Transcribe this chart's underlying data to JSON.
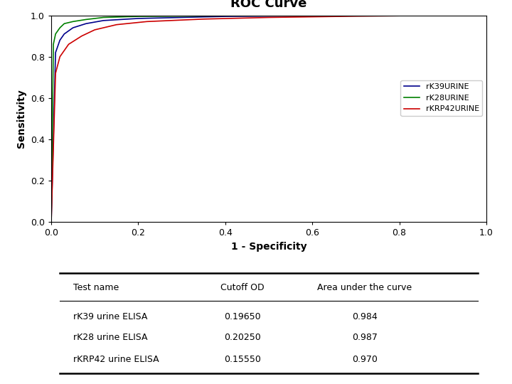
{
  "title": "ROC Curve",
  "xlabel": "1 - Specificity",
  "ylabel": "Sensitivity",
  "xlim": [
    0.0,
    1.0
  ],
  "ylim": [
    0.0,
    1.0
  ],
  "xticks": [
    0.0,
    0.2,
    0.4,
    0.6,
    0.8,
    1.0
  ],
  "yticks": [
    0.0,
    0.2,
    0.4,
    0.6,
    0.8,
    1.0
  ],
  "curves": [
    {
      "name": "rK39URINE",
      "color": "#00008B",
      "fp_points": [
        0.0,
        0.01,
        0.02,
        0.03,
        0.05,
        0.08,
        0.12,
        0.2,
        0.4,
        0.6,
        0.8,
        1.0
      ],
      "tp_points": [
        0.0,
        0.82,
        0.88,
        0.91,
        0.94,
        0.96,
        0.975,
        0.985,
        0.995,
        0.998,
        0.999,
        1.0
      ]
    },
    {
      "name": "rK28URINE",
      "color": "#008000",
      "fp_points": [
        0.0,
        0.005,
        0.01,
        0.02,
        0.03,
        0.05,
        0.08,
        0.12,
        0.2,
        0.4,
        0.6,
        0.8,
        1.0
      ],
      "tp_points": [
        0.0,
        0.86,
        0.91,
        0.94,
        0.96,
        0.97,
        0.98,
        0.99,
        0.995,
        0.998,
        0.999,
        0.9995,
        1.0
      ]
    },
    {
      "name": "rKRP42URINE",
      "color": "#CC0000",
      "fp_points": [
        0.0,
        0.01,
        0.02,
        0.04,
        0.07,
        0.1,
        0.15,
        0.22,
        0.35,
        0.5,
        0.7,
        0.85,
        1.0
      ],
      "tp_points": [
        0.0,
        0.72,
        0.8,
        0.86,
        0.9,
        0.93,
        0.955,
        0.97,
        0.982,
        0.99,
        0.996,
        0.999,
        1.0
      ]
    }
  ],
  "table_headers": [
    "Test name",
    "Cutoff OD",
    "Area under the curve"
  ],
  "table_rows": [
    [
      "rK39 urine ELISA",
      "0.19650",
      "0.984"
    ],
    [
      "rK28 urine ELISA",
      "0.20250",
      "0.987"
    ],
    [
      "rKRP42 urine ELISA",
      "0.15550",
      "0.970"
    ]
  ],
  "background_color": "#ffffff",
  "plot_bg_color": "#ffffff",
  "title_fontsize": 13,
  "axis_label_fontsize": 10,
  "tick_fontsize": 9,
  "legend_fontsize": 8
}
